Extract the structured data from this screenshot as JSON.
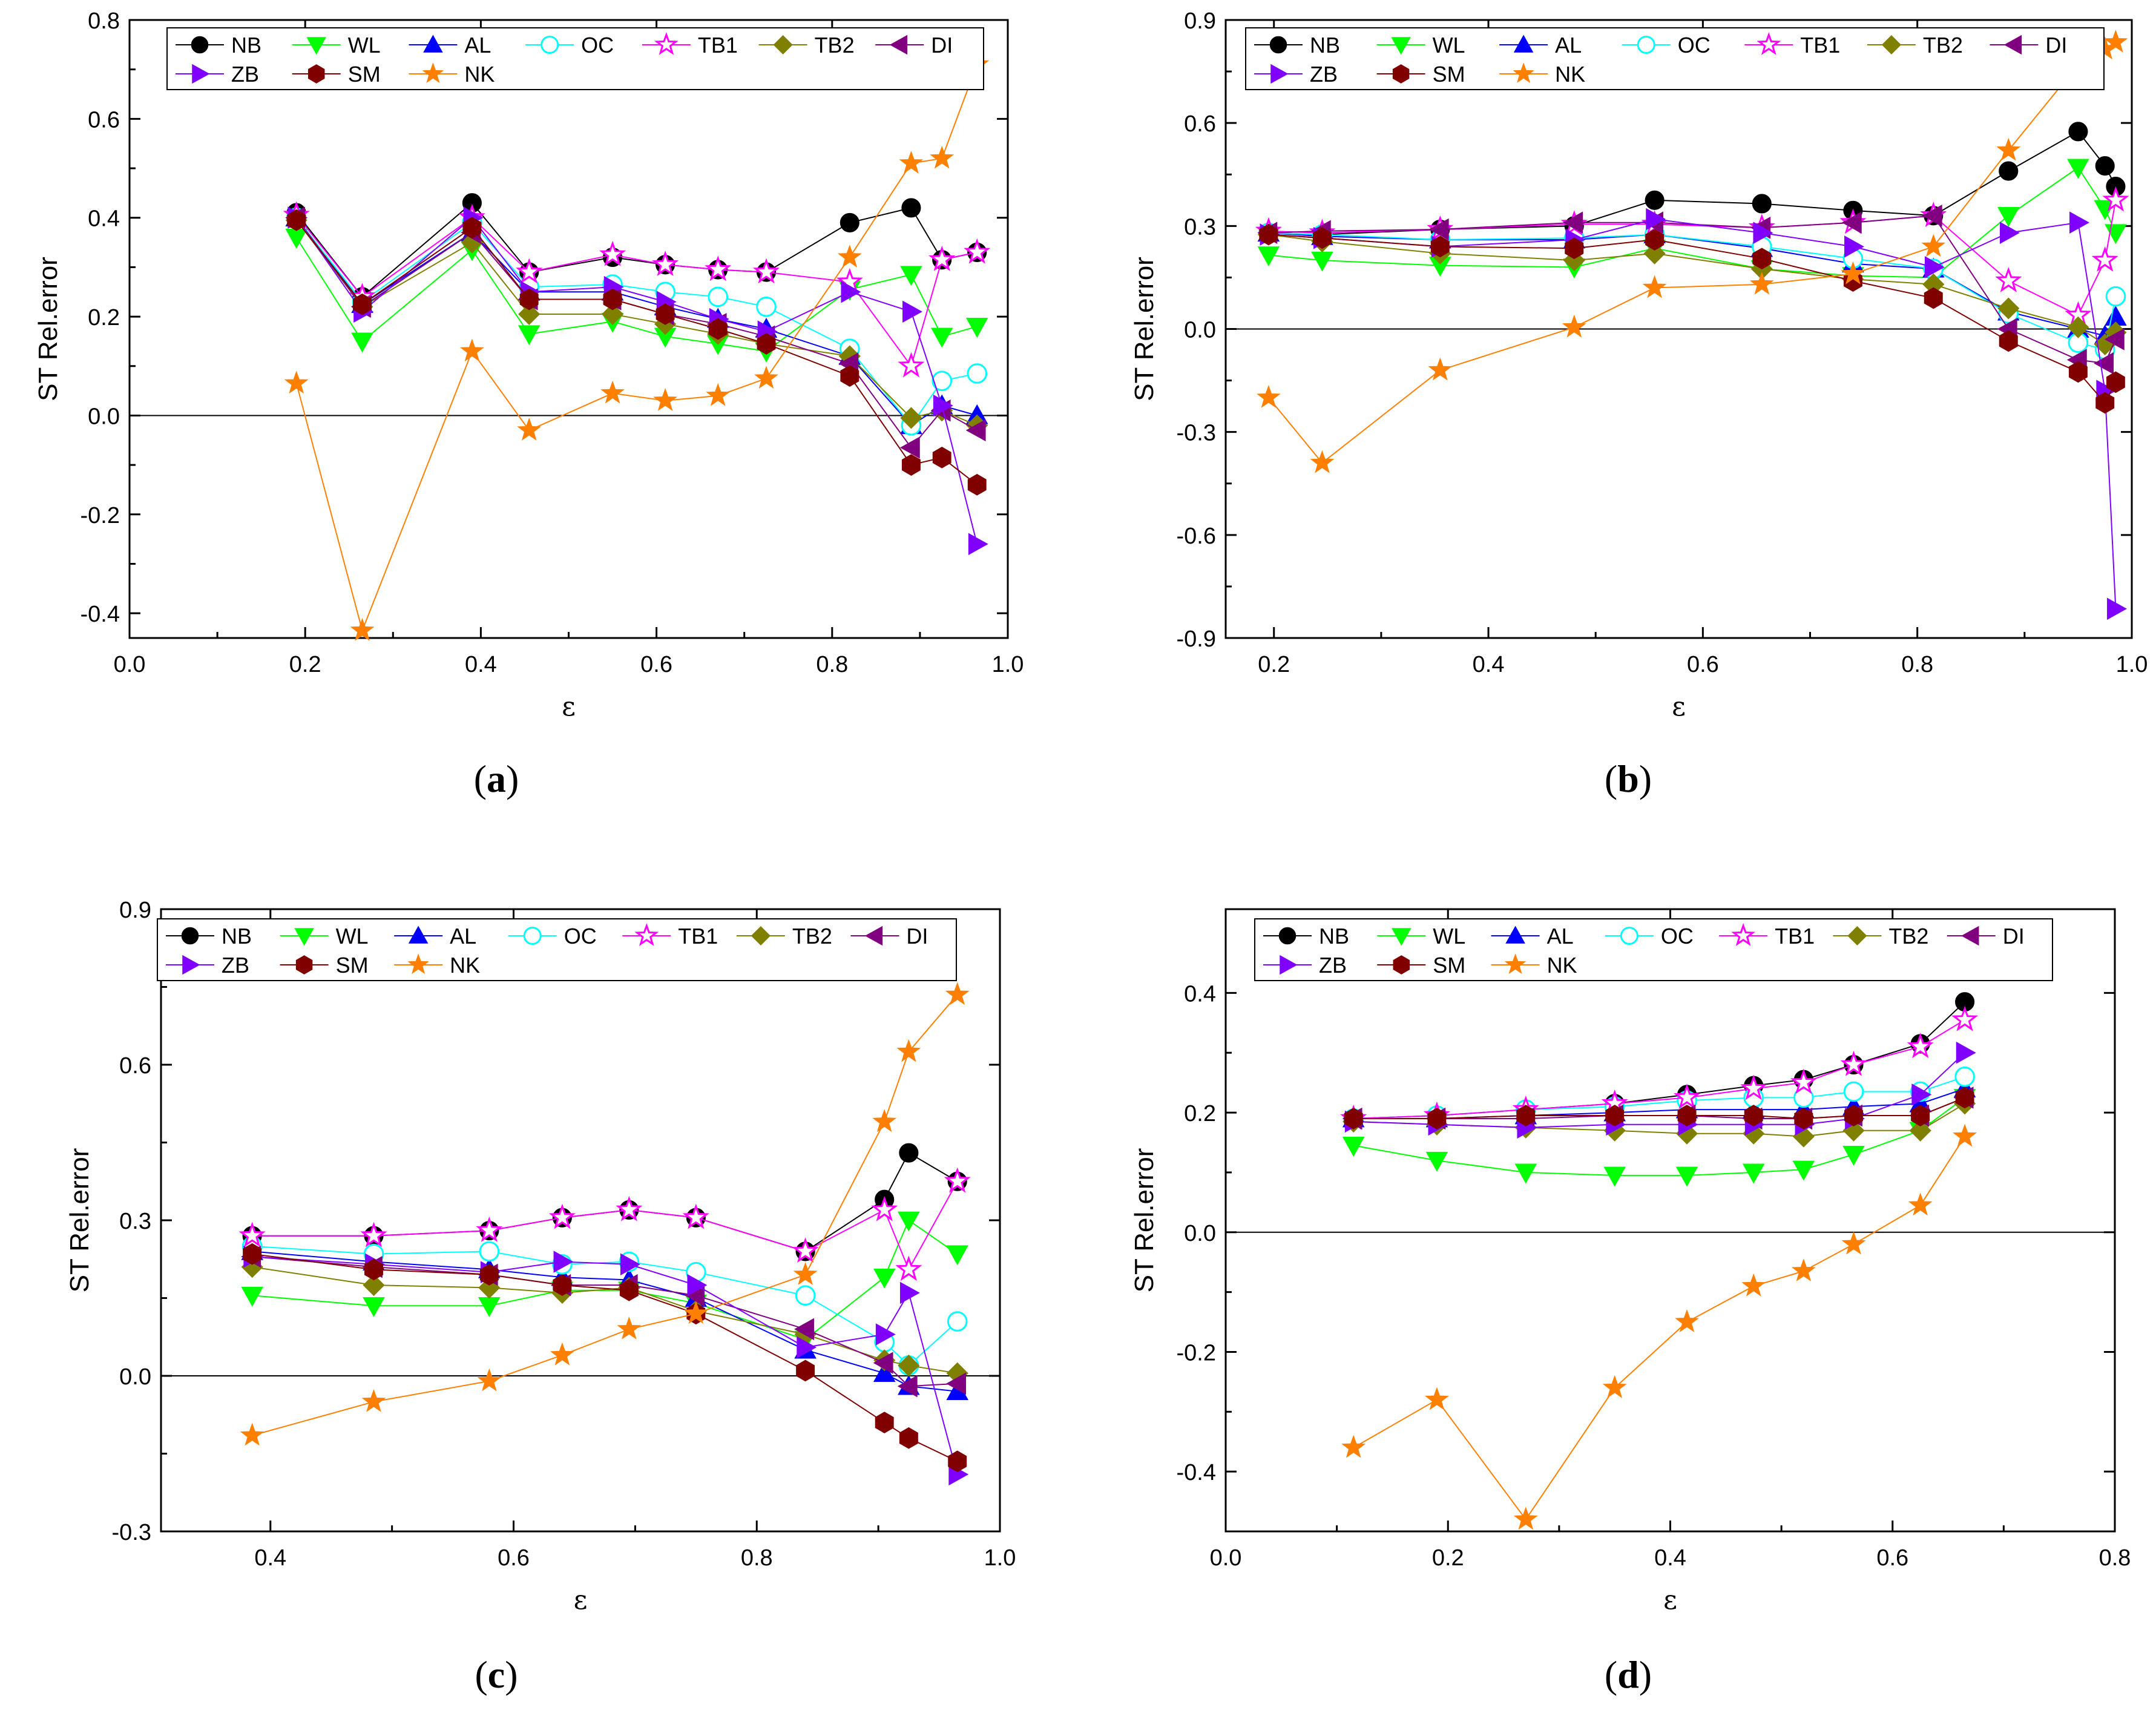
{
  "series_style": [
    {
      "name": "NB",
      "color": "#000000",
      "marker": "circle"
    },
    {
      "name": "WL",
      "color": "#00ff00",
      "marker": "tri-down"
    },
    {
      "name": "AL",
      "color": "#0000ff",
      "marker": "tri-up"
    },
    {
      "name": "OC",
      "color": "#00ffff",
      "marker": "circle-open"
    },
    {
      "name": "TB1",
      "color": "#ff00ff",
      "marker": "star-open"
    },
    {
      "name": "TB2",
      "color": "#808000",
      "marker": "diamond"
    },
    {
      "name": "DI",
      "color": "#800080",
      "marker": "tri-left"
    },
    {
      "name": "ZB",
      "color": "#8000ff",
      "marker": "tri-right"
    },
    {
      "name": "SM",
      "color": "#800000",
      "marker": "hexagon"
    },
    {
      "name": "NK",
      "color": "#ff8000",
      "marker": "star"
    }
  ],
  "chart_data": [
    {
      "id": "a",
      "type": "line",
      "panel_label": {
        "open": "(",
        "letter": "a",
        "close": ")"
      },
      "xlabel": "ε",
      "ylabel": "ST Rel.error",
      "xlim": [
        0.0,
        1.0
      ],
      "ylim": [
        -0.45,
        0.8
      ],
      "xticks": [
        0.0,
        0.2,
        0.4,
        0.6,
        0.8,
        1.0
      ],
      "xtick_labels": [
        "0.0",
        "0.2",
        "0.4",
        "0.6",
        "0.8",
        "1.0"
      ],
      "yticks": [
        -0.4,
        -0.2,
        0.0,
        0.2,
        0.4,
        0.6,
        0.8
      ],
      "ytick_labels": [
        "-0.4",
        "-0.2",
        "0.0",
        "0.2",
        "0.4",
        "0.6",
        "0.8"
      ],
      "legend": {
        "position": "top",
        "rows": [
          [
            "NB",
            "WL",
            "AL",
            "OC",
            "TB1",
            "TB2",
            "DI"
          ],
          [
            "ZB",
            "SM",
            "NK"
          ]
        ]
      },
      "x": [
        0.19,
        0.265,
        0.39,
        0.455,
        0.55,
        0.61,
        0.67,
        0.725,
        0.82,
        0.89,
        0.925,
        0.965
      ],
      "series": [
        {
          "name": "NB",
          "values": [
            0.41,
            0.24,
            0.43,
            0.29,
            0.32,
            0.305,
            0.295,
            0.29,
            0.39,
            0.42,
            0.315,
            0.33
          ]
        },
        {
          "name": "WL",
          "values": [
            0.36,
            0.15,
            0.335,
            0.165,
            0.19,
            0.16,
            0.145,
            0.13,
            0.255,
            0.285,
            0.16,
            0.18
          ]
        },
        {
          "name": "AL",
          "values": [
            0.4,
            0.225,
            0.37,
            0.25,
            0.25,
            0.22,
            0.195,
            0.175,
            0.12,
            -0.02,
            0.02,
            0.0
          ]
        },
        {
          "name": "OC",
          "values": [
            0.4,
            0.23,
            0.39,
            0.26,
            0.265,
            0.25,
            0.24,
            0.22,
            0.135,
            -0.02,
            0.07,
            0.085
          ]
        },
        {
          "name": "TB1",
          "values": [
            0.405,
            0.24,
            0.4,
            0.29,
            0.325,
            0.305,
            0.295,
            0.29,
            0.27,
            0.1,
            0.315,
            0.33
          ]
        },
        {
          "name": "TB2",
          "values": [
            0.395,
            0.22,
            0.35,
            0.205,
            0.205,
            0.185,
            0.165,
            0.145,
            0.12,
            -0.005,
            0.01,
            -0.02
          ]
        },
        {
          "name": "DI",
          "values": [
            0.4,
            0.22,
            0.37,
            0.235,
            0.235,
            0.205,
            0.185,
            0.16,
            0.105,
            -0.065,
            0.01,
            -0.03
          ]
        },
        {
          "name": "ZB",
          "values": [
            0.4,
            0.21,
            0.4,
            0.25,
            0.26,
            0.23,
            0.195,
            0.17,
            0.25,
            0.21,
            0.02,
            -0.26
          ]
        },
        {
          "name": "SM",
          "values": [
            0.395,
            0.225,
            0.38,
            0.235,
            0.235,
            0.205,
            0.175,
            0.145,
            0.08,
            -0.1,
            -0.085,
            -0.14
          ]
        },
        {
          "name": "NK",
          "values": [
            0.065,
            -0.435,
            0.13,
            -0.03,
            0.045,
            0.03,
            0.04,
            0.075,
            0.32,
            0.51,
            0.52,
            0.71
          ]
        }
      ]
    },
    {
      "id": "b",
      "type": "line",
      "panel_label": {
        "open": "(",
        "letter": "b",
        "close": ")"
      },
      "xlabel": "ε",
      "ylabel": "ST Rel.error",
      "xlim": [
        0.155,
        1.0
      ],
      "ylim": [
        -0.9,
        0.9
      ],
      "xticks": [
        0.2,
        0.4,
        0.6,
        0.8,
        1.0
      ],
      "xtick_labels": [
        "0.2",
        "0.4",
        "0.6",
        "0.8",
        "1.0"
      ],
      "yticks": [
        -0.9,
        -0.6,
        -0.3,
        0.0,
        0.3,
        0.6,
        0.9
      ],
      "ytick_labels": [
        "-0.9",
        "-0.6",
        "-0.3",
        "0.0",
        "0.3",
        "0.6",
        "0.9"
      ],
      "legend": {
        "position": "top",
        "rows": [
          [
            "NB",
            "WL",
            "AL",
            "OC",
            "TB1",
            "TB2",
            "DI"
          ],
          [
            "ZB",
            "SM",
            "NK"
          ]
        ]
      },
      "x": [
        0.195,
        0.245,
        0.355,
        0.48,
        0.555,
        0.655,
        0.74,
        0.815,
        0.885,
        0.95,
        0.975,
        0.985
      ],
      "series": [
        {
          "name": "NB",
          "values": [
            0.28,
            0.275,
            0.29,
            0.3,
            0.375,
            0.365,
            0.345,
            0.33,
            0.46,
            0.575,
            0.475,
            0.415
          ]
        },
        {
          "name": "WL",
          "values": [
            0.215,
            0.2,
            0.185,
            0.18,
            0.235,
            0.175,
            0.155,
            0.15,
            0.33,
            0.47,
            0.35,
            0.28
          ]
        },
        {
          "name": "AL",
          "values": [
            0.28,
            0.27,
            0.26,
            0.26,
            0.275,
            0.235,
            0.19,
            0.175,
            0.05,
            0.0,
            -0.02,
            0.035
          ]
        },
        {
          "name": "OC",
          "values": [
            0.28,
            0.275,
            0.26,
            0.265,
            0.275,
            0.24,
            0.205,
            0.175,
            0.045,
            -0.04,
            -0.06,
            0.095
          ]
        },
        {
          "name": "TB1",
          "values": [
            0.285,
            0.28,
            0.29,
            0.305,
            0.305,
            0.295,
            0.31,
            0.33,
            0.14,
            0.04,
            0.2,
            0.375
          ]
        },
        {
          "name": "TB2",
          "values": [
            0.275,
            0.255,
            0.22,
            0.2,
            0.22,
            0.175,
            0.145,
            0.13,
            0.06,
            0.005,
            -0.045,
            -0.01
          ]
        },
        {
          "name": "DI",
          "values": [
            0.28,
            0.285,
            0.29,
            0.31,
            0.31,
            0.295,
            0.31,
            0.33,
            0.0,
            -0.09,
            -0.1,
            -0.03
          ]
        },
        {
          "name": "ZB",
          "values": [
            0.275,
            0.265,
            0.24,
            0.26,
            0.32,
            0.28,
            0.24,
            0.18,
            0.28,
            0.31,
            -0.18,
            -0.815
          ]
        },
        {
          "name": "SM",
          "values": [
            0.275,
            0.265,
            0.24,
            0.235,
            0.26,
            0.205,
            0.14,
            0.09,
            -0.035,
            -0.125,
            -0.215,
            -0.155
          ]
        },
        {
          "name": "NK",
          "values": [
            -0.2,
            -0.39,
            -0.12,
            0.005,
            0.12,
            0.13,
            0.16,
            0.24,
            0.52,
            0.77,
            0.815,
            0.835
          ]
        }
      ]
    },
    {
      "id": "c",
      "type": "line",
      "panel_label": {
        "open": "(",
        "letter": "c",
        "close": ")"
      },
      "xlabel": "ε",
      "ylabel": "ST Rel.error",
      "xlim": [
        0.31,
        1.0
      ],
      "ylim": [
        -0.3,
        0.9
      ],
      "xticks": [
        0.4,
        0.6,
        0.8,
        1.0
      ],
      "xtick_labels": [
        "0.4",
        "0.6",
        "0.8",
        "1.0"
      ],
      "yticks": [
        -0.3,
        0.0,
        0.3,
        0.6,
        0.9
      ],
      "ytick_labels": [
        "-0.3",
        "0.0",
        "0.3",
        "0.6",
        "0.9"
      ],
      "legend": {
        "position": "top",
        "rows": [
          [
            "NB",
            "WL",
            "AL",
            "OC",
            "TB1",
            "TB2",
            "DI"
          ],
          [
            "ZB",
            "SM",
            "NK"
          ]
        ]
      },
      "x": [
        0.385,
        0.485,
        0.58,
        0.64,
        0.695,
        0.75,
        0.84,
        0.905,
        0.925,
        0.965
      ],
      "series": [
        {
          "name": "NB",
          "values": [
            0.27,
            0.27,
            0.28,
            0.305,
            0.32,
            0.305,
            0.24,
            0.34,
            0.43,
            0.375
          ]
        },
        {
          "name": "WL",
          "values": [
            0.155,
            0.135,
            0.135,
            0.165,
            0.165,
            0.14,
            0.07,
            0.19,
            0.3,
            0.235
          ]
        },
        {
          "name": "AL",
          "values": [
            0.24,
            0.22,
            0.205,
            0.19,
            0.185,
            0.15,
            0.05,
            0.005,
            -0.02,
            -0.03
          ]
        },
        {
          "name": "OC",
          "values": [
            0.25,
            0.235,
            0.24,
            0.215,
            0.22,
            0.2,
            0.155,
            0.065,
            0.02,
            0.105
          ]
        },
        {
          "name": "TB1",
          "values": [
            0.27,
            0.27,
            0.28,
            0.305,
            0.32,
            0.305,
            0.24,
            0.32,
            0.205,
            0.375
          ]
        },
        {
          "name": "TB2",
          "values": [
            0.21,
            0.175,
            0.17,
            0.16,
            0.17,
            0.125,
            0.08,
            0.03,
            0.02,
            0.005
          ]
        },
        {
          "name": "DI",
          "values": [
            0.23,
            0.21,
            0.195,
            0.175,
            0.175,
            0.155,
            0.09,
            0.025,
            -0.02,
            -0.015
          ]
        },
        {
          "name": "ZB",
          "values": [
            0.23,
            0.215,
            0.2,
            0.22,
            0.215,
            0.175,
            0.055,
            0.08,
            0.16,
            -0.19
          ]
        },
        {
          "name": "SM",
          "values": [
            0.235,
            0.205,
            0.195,
            0.175,
            0.165,
            0.12,
            0.01,
            -0.09,
            -0.12,
            -0.165
          ]
        },
        {
          "name": "NK",
          "values": [
            -0.115,
            -0.05,
            -0.01,
            0.04,
            0.09,
            0.12,
            0.195,
            0.49,
            0.625,
            0.735
          ]
        }
      ]
    },
    {
      "id": "d",
      "type": "line",
      "panel_label": {
        "open": "(",
        "letter": "d",
        "close": ")"
      },
      "xlabel": "ε",
      "ylabel": "ST Rel.error",
      "xlim": [
        0.0,
        0.8
      ],
      "ylim": [
        -0.5,
        0.54
      ],
      "xticks": [
        0.0,
        0.2,
        0.4,
        0.6,
        0.8
      ],
      "xtick_labels": [
        "0.0",
        "0.2",
        "0.4",
        "0.6",
        "0.8"
      ],
      "yticks": [
        -0.4,
        -0.2,
        0.0,
        0.2,
        0.4
      ],
      "ytick_labels": [
        "-0.4",
        "-0.2",
        "0.0",
        "0.2",
        "0.4"
      ],
      "legend": {
        "position": "top",
        "rows": [
          [
            "NB",
            "WL",
            "AL",
            "OC",
            "TB1",
            "TB2",
            "DI"
          ],
          [
            "ZB",
            "SM",
            "NK"
          ]
        ]
      },
      "x": [
        0.115,
        0.19,
        0.27,
        0.35,
        0.415,
        0.475,
        0.52,
        0.565,
        0.625,
        0.665
      ],
      "series": [
        {
          "name": "NB",
          "values": [
            0.19,
            0.195,
            0.205,
            0.215,
            0.23,
            0.245,
            0.255,
            0.28,
            0.315,
            0.385
          ]
        },
        {
          "name": "WL",
          "values": [
            0.145,
            0.12,
            0.1,
            0.095,
            0.095,
            0.1,
            0.105,
            0.13,
            0.17,
            0.225
          ]
        },
        {
          "name": "AL",
          "values": [
            0.19,
            0.19,
            0.195,
            0.2,
            0.205,
            0.205,
            0.205,
            0.21,
            0.215,
            0.24
          ]
        },
        {
          "name": "OC",
          "values": [
            0.19,
            0.195,
            0.205,
            0.21,
            0.22,
            0.225,
            0.225,
            0.235,
            0.235,
            0.26
          ]
        },
        {
          "name": "TB1",
          "values": [
            0.19,
            0.195,
            0.205,
            0.215,
            0.225,
            0.24,
            0.25,
            0.28,
            0.31,
            0.355
          ]
        },
        {
          "name": "TB2",
          "values": [
            0.185,
            0.18,
            0.175,
            0.17,
            0.165,
            0.165,
            0.16,
            0.17,
            0.17,
            0.215
          ]
        },
        {
          "name": "DI",
          "values": [
            0.19,
            0.19,
            0.19,
            0.195,
            0.195,
            0.19,
            0.19,
            0.195,
            0.195,
            0.225
          ]
        },
        {
          "name": "ZB",
          "values": [
            0.185,
            0.18,
            0.175,
            0.18,
            0.18,
            0.18,
            0.18,
            0.19,
            0.23,
            0.3
          ]
        },
        {
          "name": "SM",
          "values": [
            0.19,
            0.19,
            0.195,
            0.195,
            0.195,
            0.195,
            0.19,
            0.195,
            0.195,
            0.225
          ]
        },
        {
          "name": "NK",
          "values": [
            -0.36,
            -0.28,
            -0.48,
            -0.26,
            -0.15,
            -0.09,
            -0.065,
            -0.02,
            0.045,
            0.16
          ]
        }
      ]
    }
  ]
}
